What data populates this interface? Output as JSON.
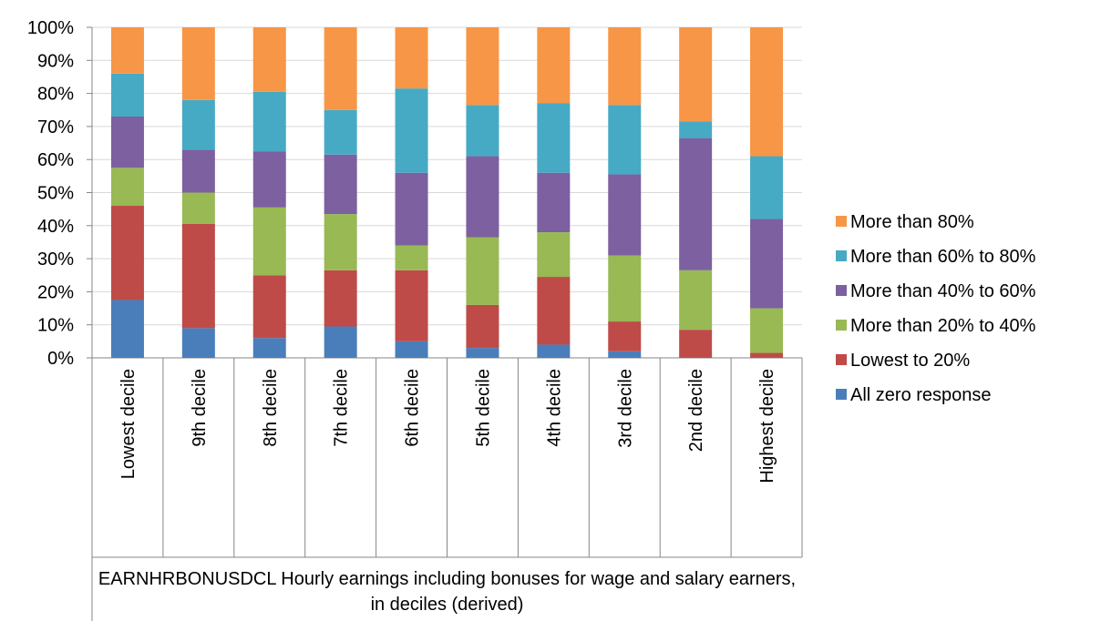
{
  "chart_data": {
    "type": "stacked_bar",
    "x_label": "EARNHRBONUSDCL Hourly earnings including bonuses for wage and salary earners, in deciles (derived)",
    "categories": [
      "Lowest decile",
      "9th decile",
      "8th decile",
      "7th decile",
      "6th decile",
      "5th decile",
      "4th decile",
      "3rd decile",
      "2nd decile",
      "Highest decile"
    ],
    "series": [
      {
        "name": "All zero response",
        "color": "#4a7ebb",
        "values": [
          17.5,
          9,
          6,
          9.5,
          5,
          3,
          4,
          2,
          0,
          0
        ]
      },
      {
        "name": "Lowest to 20%",
        "color": "#be4b48",
        "values": [
          28.5,
          31.5,
          19,
          17,
          21.5,
          13,
          20.5,
          9,
          8.5,
          1.5
        ]
      },
      {
        "name": "More than 20% to 40%",
        "color": "#98b954",
        "values": [
          11.5,
          9.5,
          20.5,
          17,
          7.5,
          20.5,
          13.5,
          20,
          18,
          13.5
        ]
      },
      {
        "name": "More than 40% to 60%",
        "color": "#7d60a0",
        "values": [
          15.5,
          13,
          17,
          18,
          22,
          24.5,
          18,
          24.5,
          40,
          27
        ]
      },
      {
        "name": "More than 60% to 80%",
        "color": "#46aac5",
        "values": [
          13,
          15,
          18,
          13.5,
          25.5,
          15.5,
          21,
          21,
          5,
          19
        ]
      },
      {
        "name": "More than 80%",
        "color": "#f79646",
        "values": [
          14,
          22,
          19.5,
          25,
          18.5,
          23.5,
          23,
          23.5,
          28.5,
          39
        ]
      }
    ],
    "ylim": [
      0,
      100
    ],
    "yticks": [
      {
        "value": 0,
        "label": "0%"
      },
      {
        "value": 10,
        "label": "10%"
      },
      {
        "value": 20,
        "label": "20%"
      },
      {
        "value": 30,
        "label": "30%"
      },
      {
        "value": 40,
        "label": "40%"
      },
      {
        "value": 50,
        "label": "50%"
      },
      {
        "value": 60,
        "label": "60%"
      },
      {
        "value": 70,
        "label": "70%"
      },
      {
        "value": 80,
        "label": "80%"
      },
      {
        "value": 90,
        "label": "90%"
      },
      {
        "value": 100,
        "label": "100%"
      }
    ],
    "grid": true,
    "legend": "right"
  }
}
